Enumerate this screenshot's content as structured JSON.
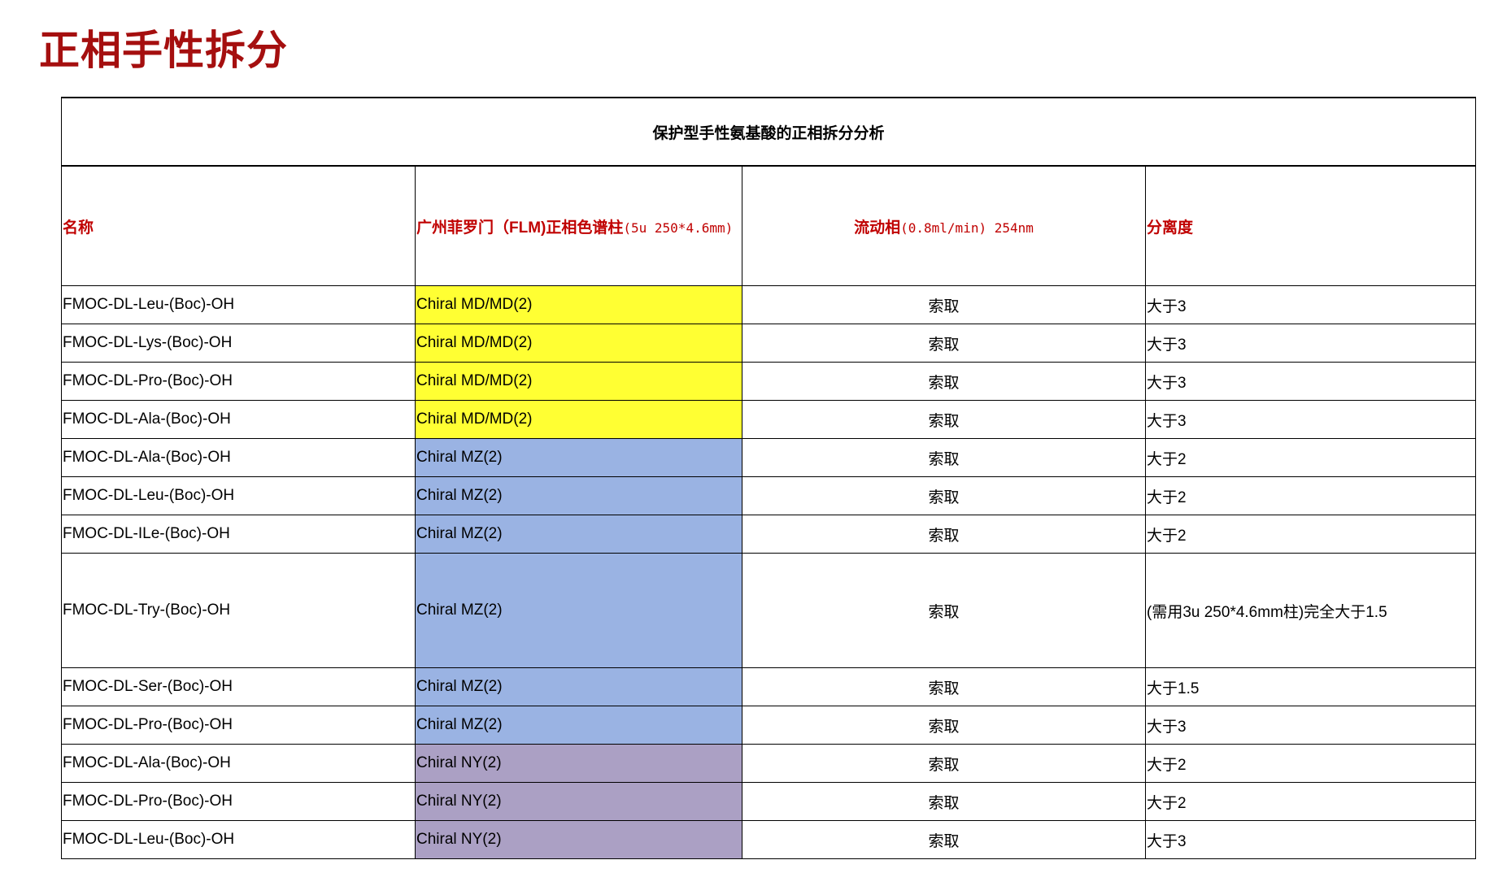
{
  "page_title": "正相手性拆分",
  "table": {
    "caption": "保护型手性氨基酸的正相拆分分析",
    "headers": {
      "name": "名称",
      "column_cn": "广州菲罗门（FLM)正相色谱柱",
      "column_spec": "(5u 250*4.6mm)",
      "mobile_cn": "流动相",
      "mobile_spec": "(0.8ml/min) 254nm",
      "resolution": "分离度"
    },
    "colors": {
      "MD": "#ffff33",
      "MZ": "#9ab3e3",
      "NY": "#aba0c4",
      "header_text": "#c00000",
      "title": "#a50f0f"
    },
    "rows": [
      {
        "name": "FMOC-DL-Leu-(Boc)-OH",
        "column": "Chiral MD/MD(2)",
        "group": "MD",
        "mobile": "索取",
        "resolution": "大于3"
      },
      {
        "name": "FMOC-DL-Lys-(Boc)-OH",
        "column": "Chiral MD/MD(2)",
        "group": "MD",
        "mobile": "索取",
        "resolution": "大于3"
      },
      {
        "name": "FMOC-DL-Pro-(Boc)-OH",
        "column": "Chiral MD/MD(2)",
        "group": "MD",
        "mobile": "索取",
        "resolution": "大于3"
      },
      {
        "name": "FMOC-DL-Ala-(Boc)-OH",
        "column": "Chiral MD/MD(2)",
        "group": "MD",
        "mobile": "索取",
        "resolution": "大于3"
      },
      {
        "name": "FMOC-DL-Ala-(Boc)-OH",
        "column": "Chiral MZ(2)",
        "group": "MZ",
        "mobile": "索取",
        "resolution": "大于2"
      },
      {
        "name": "FMOC-DL-Leu-(Boc)-OH",
        "column": "Chiral MZ(2)",
        "group": "MZ",
        "mobile": "索取",
        "resolution": "大于2"
      },
      {
        "name": "FMOC-DL-ILe-(Boc)-OH",
        "column": "Chiral MZ(2)",
        "group": "MZ",
        "mobile": "索取",
        "resolution": "大于2"
      },
      {
        "name": "FMOC-DL-Try-(Boc)-OH",
        "column": "Chiral MZ(2)",
        "group": "MZ",
        "mobile": "索取",
        "resolution": "(需用3u 250*4.6mm柱)完全大于1.5"
      },
      {
        "name": "FMOC-DL-Ser-(Boc)-OH",
        "column": "Chiral MZ(2)",
        "group": "MZ",
        "mobile": "索取",
        "resolution": "大于1.5"
      },
      {
        "name": "FMOC-DL-Pro-(Boc)-OH",
        "column": "Chiral MZ(2)",
        "group": "MZ",
        "mobile": "索取",
        "resolution": "大于3"
      },
      {
        "name": "FMOC-DL-Ala-(Boc)-OH",
        "column": "Chiral NY(2)",
        "group": "NY",
        "mobile": "索取",
        "resolution": "大于2"
      },
      {
        "name": "FMOC-DL-Pro-(Boc)-OH",
        "column": "Chiral NY(2)",
        "group": "NY",
        "mobile": "索取",
        "resolution": "大于2"
      },
      {
        "name": "FMOC-DL-Leu-(Boc)-OH",
        "column": "Chiral NY(2)",
        "group": "NY",
        "mobile": "索取",
        "resolution": "大于3"
      }
    ]
  }
}
